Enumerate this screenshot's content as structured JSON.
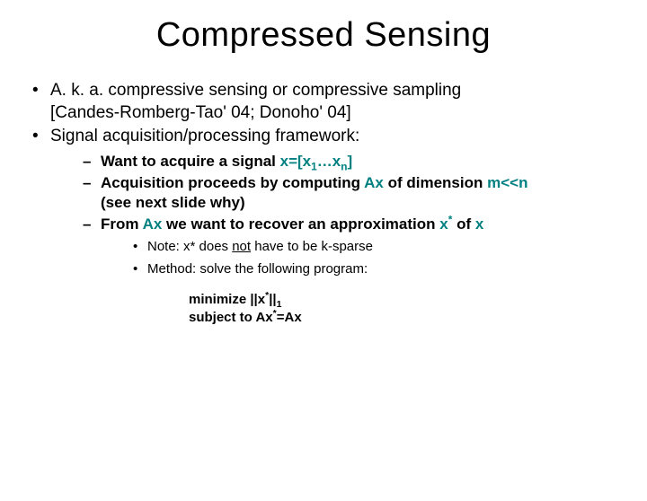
{
  "colors": {
    "background": "#ffffff",
    "text": "#000000",
    "accent": "#008080"
  },
  "title": "Compressed Sensing",
  "bullets_l1": {
    "b1_line1": "A. k. a. compressive sensing or compressive sampling",
    "b1_line2": "[Candes-Romberg-Tao' 04; Donoho' 04]",
    "b2": "Signal acquisition/processing framework:"
  },
  "bullets_l2": {
    "s1_pre": "Want to acquire a signal ",
    "s1_x": "x=[x",
    "s1_sub1": "1",
    "s1_mid": "…x",
    "s1_subn": "n",
    "s1_post": "]",
    "s2_pre": "Acquisition proceeds by computing ",
    "s2_ax": "Ax",
    "s2_mid": " of dimension ",
    "s2_mn": "m<<n",
    "s2_line2": "(see next slide why)",
    "s3_pre": "From ",
    "s3_ax": "Ax",
    "s3_mid": " we want to recover an approximation ",
    "s3_xstar": "x",
    "s3_sup": "*",
    "s3_of": " of ",
    "s3_x": "x"
  },
  "bullets_l3": {
    "n1_pre": "Note: x* does ",
    "n1_not": "not",
    "n1_post": " have to be k-sparse",
    "n2": "Method: solve the following program:"
  },
  "math": {
    "line1_pre": "minimize ||x",
    "line1_sup": "*",
    "line1_mid": "||",
    "line1_sub": "1",
    "line2_pre": "subject to Ax",
    "line2_sup": "*",
    "line2_post": "=Ax"
  }
}
